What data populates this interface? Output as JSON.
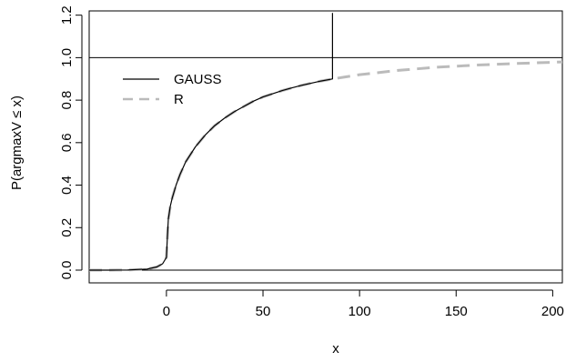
{
  "chart_data": {
    "type": "line",
    "title": "",
    "xlabel": "x",
    "ylabel": "P(argmaxV ≤ x)",
    "xlim": [
      -40,
      205
    ],
    "ylim": [
      -0.06,
      1.22
    ],
    "xticks": [
      0,
      50,
      100,
      150,
      200
    ],
    "yticks": [
      0.0,
      0.2,
      0.4,
      0.6,
      0.8,
      1.0,
      1.2
    ],
    "hlines": [
      0,
      1
    ],
    "grid": false,
    "legend_position": "top-left",
    "series": [
      {
        "name": "GAUSS",
        "color": "#000000",
        "style": "solid",
        "x": [
          -40,
          -30,
          -20,
          -10,
          -5,
          -2,
          0,
          0.5,
          1,
          2,
          3,
          5,
          7,
          10,
          15,
          20,
          25,
          30,
          35,
          40,
          45,
          50,
          55,
          60,
          65,
          70,
          75,
          80,
          86,
          86,
          86
        ],
        "y": [
          0.0,
          0.0,
          0.001,
          0.005,
          0.015,
          0.03,
          0.06,
          0.16,
          0.24,
          0.3,
          0.34,
          0.4,
          0.45,
          0.51,
          0.58,
          0.635,
          0.68,
          0.715,
          0.745,
          0.77,
          0.795,
          0.815,
          0.83,
          0.845,
          0.858,
          0.87,
          0.88,
          0.89,
          0.9,
          1.0,
          1.21
        ]
      },
      {
        "name": "R",
        "color": "#bbbbbb",
        "style": "dashed",
        "x": [
          -40,
          -30,
          -20,
          -10,
          -5,
          -2,
          0,
          0.5,
          1,
          2,
          3,
          5,
          7,
          10,
          15,
          20,
          25,
          30,
          35,
          40,
          45,
          50,
          55,
          60,
          65,
          70,
          75,
          80,
          86,
          100,
          120,
          140,
          160,
          180,
          205
        ],
        "y": [
          0.0,
          0.0,
          0.001,
          0.005,
          0.015,
          0.03,
          0.06,
          0.16,
          0.24,
          0.3,
          0.34,
          0.4,
          0.45,
          0.51,
          0.58,
          0.635,
          0.68,
          0.715,
          0.745,
          0.77,
          0.795,
          0.815,
          0.83,
          0.845,
          0.858,
          0.87,
          0.88,
          0.89,
          0.9,
          0.92,
          0.94,
          0.955,
          0.965,
          0.972,
          0.98
        ]
      }
    ]
  }
}
